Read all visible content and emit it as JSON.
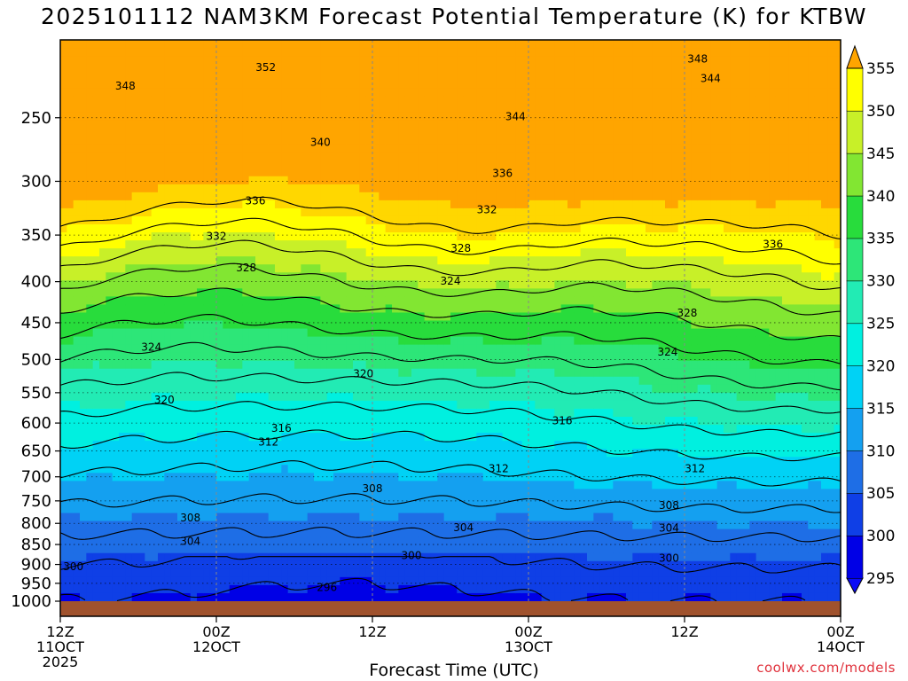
{
  "chart_data": {
    "type": "heatmap",
    "title": "2025101112 NAM3KM Forecast Potential Temperature (K) for KTBW",
    "xlabel": "Forecast Time (UTC)",
    "ylabel": "",
    "y_scale": "log",
    "y_ticks": [
      250,
      300,
      350,
      400,
      450,
      500,
      550,
      600,
      650,
      700,
      750,
      800,
      850,
      900,
      950,
      1000
    ],
    "ylim": [
      200,
      1000
    ],
    "x_ticks": [
      {
        "hour": 0,
        "line1": "12Z",
        "line2": "11OCT",
        "line3": "2025"
      },
      {
        "hour": 12,
        "line1": "00Z",
        "line2": "12OCT",
        "line3": ""
      },
      {
        "hour": 24,
        "line1": "12Z",
        "line2": "",
        "line3": ""
      },
      {
        "hour": 36,
        "line1": "00Z",
        "line2": "13OCT",
        "line3": ""
      },
      {
        "hour": 48,
        "line1": "12Z",
        "line2": "",
        "line3": ""
      },
      {
        "hour": 60,
        "line1": "00Z",
        "line2": "14OCT",
        "line3": ""
      }
    ],
    "xlim": [
      0,
      60
    ],
    "colorbar": {
      "ticks": [
        295,
        300,
        305,
        310,
        315,
        320,
        325,
        330,
        335,
        340,
        345,
        350,
        355
      ],
      "colors": [
        "#0a0af5",
        "#0000e6",
        "#0f3fe6",
        "#1e6ee6",
        "#14a0f0",
        "#00d2f5",
        "#00f0e0",
        "#22ebb4",
        "#2de678",
        "#28dc3c",
        "#82e632",
        "#c8f028",
        "#ffff00",
        "#ffd700",
        "#ffa500"
      ]
    },
    "contour_labels": [
      {
        "value": 352,
        "hour": 15.8,
        "p": 216
      },
      {
        "value": 348,
        "hour": 5.0,
        "p": 228
      },
      {
        "value": 348,
        "hour": 49.0,
        "p": 211
      },
      {
        "value": 344,
        "hour": 50.0,
        "p": 223
      },
      {
        "value": 344,
        "hour": 35.0,
        "p": 249
      },
      {
        "value": 340,
        "hour": 20.0,
        "p": 268
      },
      {
        "value": 336,
        "hour": 34.0,
        "p": 293
      },
      {
        "value": 336,
        "hour": 15.0,
        "p": 317
      },
      {
        "value": 336,
        "hour": 54.8,
        "p": 359
      },
      {
        "value": 332,
        "hour": 32.8,
        "p": 325
      },
      {
        "value": 332,
        "hour": 12.0,
        "p": 351
      },
      {
        "value": 328,
        "hour": 30.8,
        "p": 363
      },
      {
        "value": 328,
        "hour": 14.3,
        "p": 384
      },
      {
        "value": 328,
        "hour": 48.2,
        "p": 437
      },
      {
        "value": 324,
        "hour": 30.0,
        "p": 399
      },
      {
        "value": 324,
        "hour": 7.0,
        "p": 482
      },
      {
        "value": 324,
        "hour": 46.7,
        "p": 489
      },
      {
        "value": 320,
        "hour": 23.3,
        "p": 520
      },
      {
        "value": 320,
        "hour": 8.0,
        "p": 561
      },
      {
        "value": 316,
        "hour": 38.6,
        "p": 595
      },
      {
        "value": 316,
        "hour": 17.0,
        "p": 608
      },
      {
        "value": 312,
        "hour": 16.0,
        "p": 633
      },
      {
        "value": 312,
        "hour": 33.7,
        "p": 683
      },
      {
        "value": 312,
        "hour": 48.8,
        "p": 683
      },
      {
        "value": 308,
        "hour": 24.0,
        "p": 723
      },
      {
        "value": 308,
        "hour": 10.0,
        "p": 786
      },
      {
        "value": 308,
        "hour": 46.8,
        "p": 759
      },
      {
        "value": 304,
        "hour": 31.0,
        "p": 809
      },
      {
        "value": 304,
        "hour": 46.8,
        "p": 810
      },
      {
        "value": 304,
        "hour": 10.0,
        "p": 841
      },
      {
        "value": 300,
        "hour": 27.0,
        "p": 876
      },
      {
        "value": 300,
        "hour": 1.0,
        "p": 904
      },
      {
        "value": 300,
        "hour": 46.8,
        "p": 883
      },
      {
        "value": 296,
        "hour": 20.5,
        "p": 960
      }
    ]
  },
  "footer": {
    "credit": "coolwx.com/models"
  }
}
